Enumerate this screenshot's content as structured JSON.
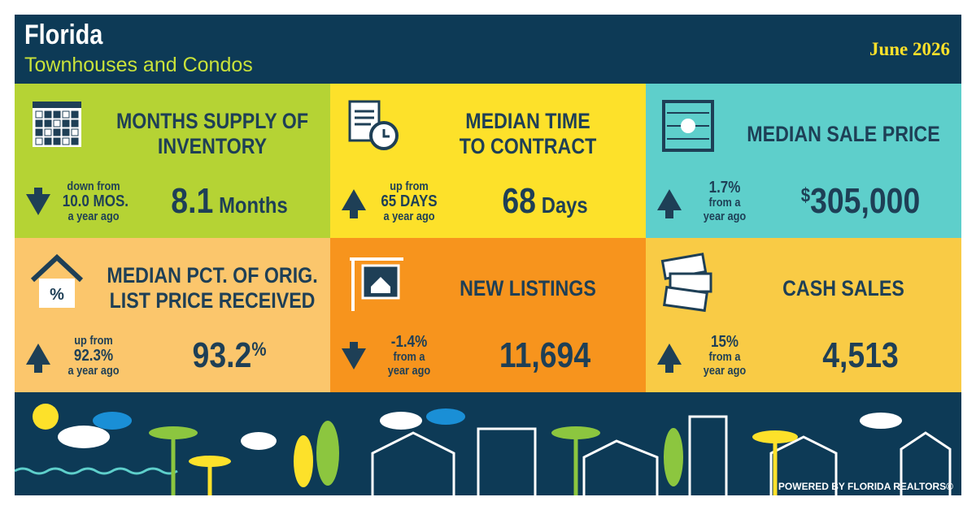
{
  "header": {
    "title": "Florida",
    "subtitle": "Townhouses and Condos",
    "date": "June 2026"
  },
  "tiles": [
    {
      "title": [
        "MONTHS SUPPLY OF",
        "INVENTORY"
      ],
      "change": [
        "down from",
        "10.0 MOS.",
        "a year ago"
      ],
      "direction": "down",
      "value": "8.1",
      "unit": "Months",
      "color": "#b5d334"
    },
    {
      "title": [
        "MEDIAN TIME",
        "TO CONTRACT"
      ],
      "change": [
        "up from",
        "65 DAYS",
        "a year ago"
      ],
      "direction": "up",
      "value": "68",
      "unit": "Days",
      "color": "#fde12a"
    },
    {
      "title": [
        "MEDIAN SALE PRICE"
      ],
      "change": [
        "1.7%",
        "from a",
        "year ago"
      ],
      "direction": "up",
      "prefix": "$",
      "value": "305,000",
      "color": "#5ecfcb"
    },
    {
      "title": [
        "MEDIAN PCT. OF ORIG.",
        "LIST PRICE RECEIVED"
      ],
      "change": [
        "up from",
        "92.3%",
        "a year ago"
      ],
      "direction": "up",
      "value": "93.2",
      "suffix": "%",
      "color": "#fbc66c"
    },
    {
      "title": [
        "NEW LISTINGS"
      ],
      "change": [
        "-1.4%",
        "from a",
        "year ago"
      ],
      "direction": "down",
      "value": "11,694",
      "color": "#f7941d"
    },
    {
      "title": [
        "CASH SALES"
      ],
      "change": [
        "15%",
        "from a",
        "year ago"
      ],
      "direction": "up",
      "value": "4,513",
      "color": "#f9cb45"
    }
  ],
  "footer": {
    "credit": "POWERED BY FLORIDA REALTORS®"
  }
}
